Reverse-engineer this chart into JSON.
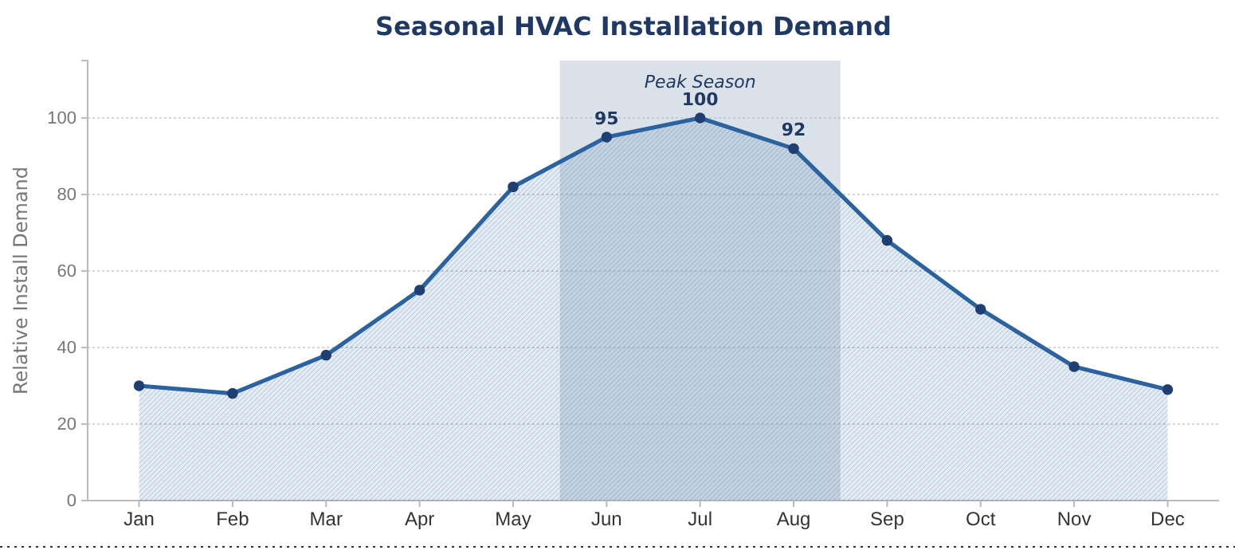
{
  "chart_data": {
    "type": "area",
    "title": "Seasonal HVAC Installation Demand",
    "ylabel": "Relative Install Demand",
    "categories": [
      "Jan",
      "Feb",
      "Mar",
      "Apr",
      "May",
      "Jun",
      "Jul",
      "Aug",
      "Sep",
      "Oct",
      "Nov",
      "Dec"
    ],
    "series": [
      {
        "color": "#2b62a0",
        "values": [
          30,
          28,
          38,
          55,
          82,
          95,
          100,
          92,
          68,
          50,
          35,
          29
        ]
      }
    ],
    "value_labels": [
      null,
      null,
      null,
      null,
      null,
      "95",
      "100",
      "92",
      null,
      null,
      null,
      null
    ],
    "ylim": [
      0,
      115
    ],
    "yticks": [
      0,
      20,
      40,
      60,
      80,
      100
    ],
    "grid": "y",
    "marker": "circle",
    "line_style": "solid",
    "bands": [
      {
        "axis": "x",
        "from": "Jun",
        "to": "Aug",
        "label": "Peak Season",
        "color": "#b0bccb"
      }
    ]
  }
}
